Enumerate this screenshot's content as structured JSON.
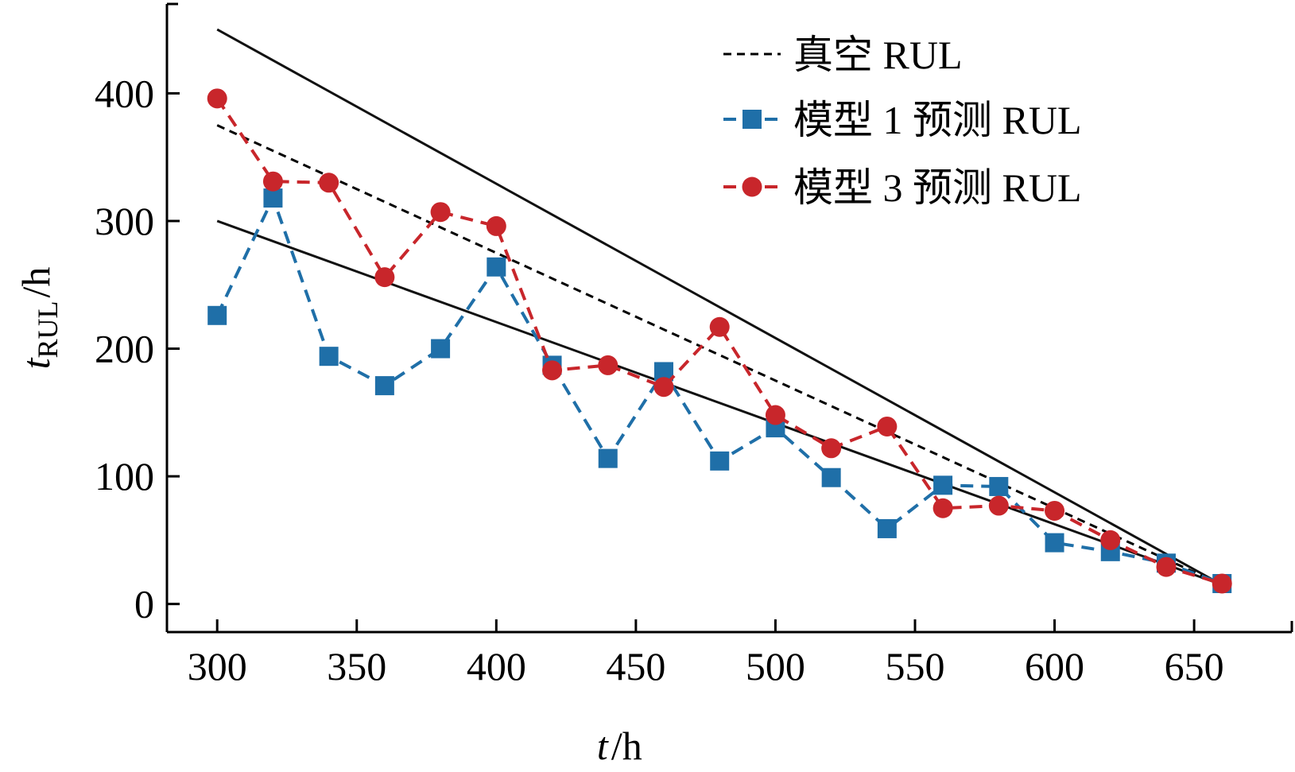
{
  "chart_data": {
    "type": "line",
    "xlabel": {
      "var": "t",
      "unit": "/h"
    },
    "ylabel": {
      "var": "t",
      "sub": "RUL",
      "unit": "/h"
    },
    "xlim": [
      282,
      685
    ],
    "ylim": [
      -22,
      470
    ],
    "xticks": [
      300,
      350,
      400,
      450,
      500,
      550,
      600,
      650
    ],
    "yticks": [
      0,
      100,
      200,
      300,
      400
    ],
    "legend_position": "top-right",
    "legend": [
      {
        "label": "真空 RUL",
        "style": "black-dashed"
      },
      {
        "label": "模型 1 预测 RUL",
        "style": "blue-square-dashed"
      },
      {
        "label": "模型 3 预测 RUL",
        "style": "red-circle-dashed"
      }
    ],
    "bound_lines": [
      {
        "x": [
          300,
          660
        ],
        "y": [
          450,
          15
        ]
      },
      {
        "x": [
          300,
          660
        ],
        "y": [
          300,
          15
        ]
      }
    ],
    "series": [
      {
        "name": "真空 RUL",
        "color": "#000000",
        "marker": "none",
        "x": [
          300,
          660
        ],
        "y": [
          375,
          15
        ]
      },
      {
        "name": "模型 1 预测 RUL",
        "color": "#1f6fa8",
        "marker": "square",
        "x": [
          300,
          320,
          340,
          360,
          380,
          400,
          420,
          440,
          460,
          480,
          500,
          520,
          540,
          560,
          580,
          600,
          620,
          640,
          660
        ],
        "y": [
          226,
          318,
          194,
          171,
          200,
          264,
          187,
          114,
          182,
          112,
          138,
          99,
          59,
          93,
          92,
          48,
          41,
          32,
          16
        ]
      },
      {
        "name": "模型 3 预测 RUL",
        "color": "#c8262b",
        "marker": "circle",
        "x": [
          300,
          320,
          340,
          360,
          380,
          400,
          420,
          440,
          460,
          480,
          500,
          520,
          540,
          560,
          580,
          600,
          620,
          640,
          660
        ],
        "y": [
          396,
          331,
          330,
          256,
          307,
          296,
          183,
          187,
          170,
          217,
          148,
          122,
          139,
          75,
          77,
          73,
          50,
          29,
          16
        ]
      }
    ]
  }
}
